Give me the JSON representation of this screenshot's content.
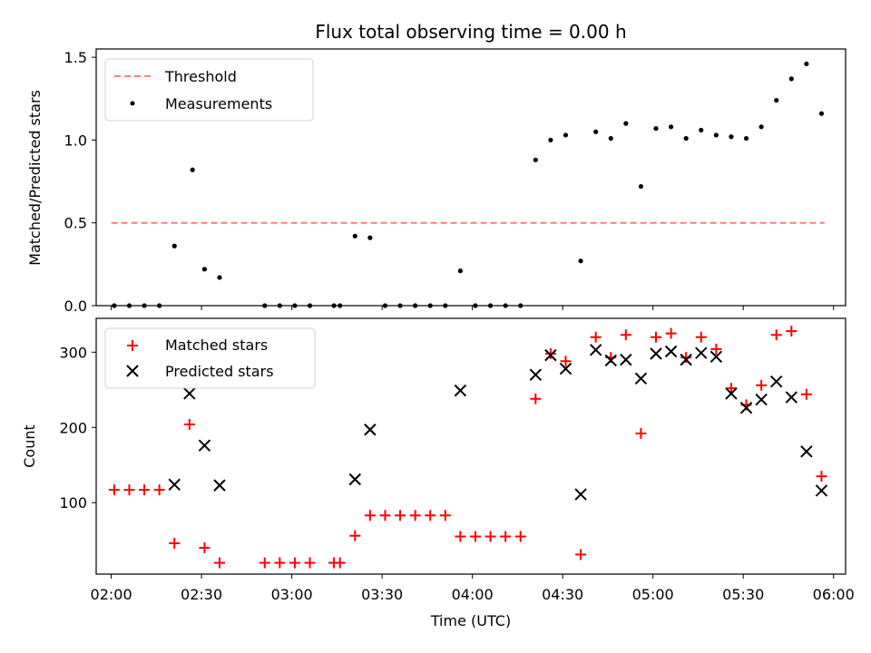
{
  "title": "Flux total observing time = 0.00 h",
  "chart_data": [
    {
      "type": "scatter",
      "ylabel": "Matched/Predicted stars",
      "ylim": [
        0,
        1.55
      ],
      "yticks": [
        0,
        0.5,
        1.0,
        1.5
      ],
      "ytick_labels": [
        "0.0",
        "0.5",
        "1.0",
        "1.5"
      ],
      "threshold": {
        "name": "Threshold",
        "value": 0.5,
        "x_start": "02:00",
        "x_end": "05:57",
        "color": "#ff7f7f"
      },
      "legend": [
        "Threshold",
        "Measurements"
      ],
      "legend_position": "top-left",
      "series": [
        {
          "name": "Measurements",
          "color": "#000000",
          "points": [
            [
              "02:01",
              0
            ],
            [
              "02:06",
              0
            ],
            [
              "02:11",
              0
            ],
            [
              "02:16",
              0
            ],
            [
              "02:21",
              0.36
            ],
            [
              "02:27",
              0.82
            ],
            [
              "02:31",
              0.22
            ],
            [
              "02:36",
              0.17
            ],
            [
              "02:51",
              0
            ],
            [
              "02:56",
              0
            ],
            [
              "03:01",
              0
            ],
            [
              "03:06",
              0
            ],
            [
              "03:14",
              0
            ],
            [
              "03:16",
              0
            ],
            [
              "03:21",
              0.42
            ],
            [
              "03:26",
              0.41
            ],
            [
              "03:31",
              0
            ],
            [
              "03:36",
              0
            ],
            [
              "03:41",
              0
            ],
            [
              "03:46",
              0
            ],
            [
              "03:51",
              0
            ],
            [
              "03:56",
              0.21
            ],
            [
              "04:01",
              0
            ],
            [
              "04:06",
              0
            ],
            [
              "04:11",
              0
            ],
            [
              "04:16",
              0
            ],
            [
              "04:21",
              0.88
            ],
            [
              "04:26",
              1.0
            ],
            [
              "04:31",
              1.03
            ],
            [
              "04:36",
              0.27
            ],
            [
              "04:41",
              1.05
            ],
            [
              "04:46",
              1.01
            ],
            [
              "04:51",
              1.1
            ],
            [
              "04:56",
              0.72
            ],
            [
              "05:01",
              1.07
            ],
            [
              "05:06",
              1.08
            ],
            [
              "05:11",
              1.01
            ],
            [
              "05:16",
              1.06
            ],
            [
              "05:21",
              1.03
            ],
            [
              "05:26",
              1.02
            ],
            [
              "05:31",
              1.01
            ],
            [
              "05:36",
              1.08
            ],
            [
              "05:41",
              1.24
            ],
            [
              "05:46",
              1.37
            ],
            [
              "05:51",
              1.46
            ],
            [
              "05:56",
              1.16
            ]
          ]
        }
      ]
    },
    {
      "type": "scatter",
      "xlabel": "Time (UTC)",
      "ylabel": "Count",
      "ylim": [
        5,
        345
      ],
      "yticks": [
        100,
        200,
        300
      ],
      "ytick_labels": [
        "100",
        "200",
        "300"
      ],
      "xlim": [
        "01:55",
        "06:04"
      ],
      "xticks": [
        "02:00",
        "02:30",
        "03:00",
        "03:30",
        "04:00",
        "04:30",
        "05:00",
        "05:30",
        "06:00"
      ],
      "xtick_labels": [
        "02:00",
        "02:30",
        "03:00",
        "03:30",
        "04:00",
        "04:30",
        "05:00",
        "05:30",
        "06:00"
      ],
      "legend": [
        "Matched stars",
        "Predicted stars"
      ],
      "legend_position": "top-left",
      "series": [
        {
          "name": "Matched stars",
          "marker": "plus",
          "color": "#ff0000",
          "points": [
            [
              "02:01",
              117
            ],
            [
              "02:06",
              117
            ],
            [
              "02:11",
              117
            ],
            [
              "02:16",
              117
            ],
            [
              "02:21",
              46
            ],
            [
              "02:26",
              204
            ],
            [
              "02:31",
              40
            ],
            [
              "02:36",
              20
            ],
            [
              "02:51",
              20
            ],
            [
              "02:56",
              20
            ],
            [
              "03:01",
              20
            ],
            [
              "03:06",
              20
            ],
            [
              "03:14",
              20
            ],
            [
              "03:16",
              20
            ],
            [
              "03:21",
              56
            ],
            [
              "03:26",
              83
            ],
            [
              "03:31",
              83
            ],
            [
              "03:36",
              83
            ],
            [
              "03:41",
              83
            ],
            [
              "03:46",
              83
            ],
            [
              "03:51",
              83
            ],
            [
              "03:56",
              55
            ],
            [
              "04:01",
              55
            ],
            [
              "04:06",
              55
            ],
            [
              "04:11",
              55
            ],
            [
              "04:16",
              55
            ],
            [
              "04:21",
              238
            ],
            [
              "04:26",
              298
            ],
            [
              "04:31",
              288
            ],
            [
              "04:36",
              31
            ],
            [
              "04:41",
              320
            ],
            [
              "04:46",
              293
            ],
            [
              "04:51",
              323
            ],
            [
              "04:56",
              192
            ],
            [
              "05:01",
              320
            ],
            [
              "05:06",
              325
            ],
            [
              "05:11",
              293
            ],
            [
              "05:16",
              320
            ],
            [
              "05:21",
              304
            ],
            [
              "05:26",
              252
            ],
            [
              "05:31",
              230
            ],
            [
              "05:36",
              256
            ],
            [
              "05:41",
              323
            ],
            [
              "05:46",
              328
            ],
            [
              "05:51",
              244
            ],
            [
              "05:56",
              135
            ]
          ]
        },
        {
          "name": "Predicted stars",
          "marker": "x",
          "color": "#000000",
          "points": [
            [
              "02:21",
              124
            ],
            [
              "02:26",
              245
            ],
            [
              "02:31",
              176
            ],
            [
              "02:36",
              123
            ],
            [
              "03:21",
              131
            ],
            [
              "03:26",
              197
            ],
            [
              "03:56",
              249
            ],
            [
              "04:21",
              270
            ],
            [
              "04:26",
              296
            ],
            [
              "04:31",
              278
            ],
            [
              "04:36",
              111
            ],
            [
              "04:41",
              303
            ],
            [
              "04:46",
              289
            ],
            [
              "04:51",
              290
            ],
            [
              "04:56",
              265
            ],
            [
              "05:01",
              298
            ],
            [
              "05:06",
              301
            ],
            [
              "05:11",
              290
            ],
            [
              "05:16",
              299
            ],
            [
              "05:21",
              294
            ],
            [
              "05:26",
              245
            ],
            [
              "05:31",
              226
            ],
            [
              "05:36",
              237
            ],
            [
              "05:41",
              261
            ],
            [
              "05:46",
              240
            ],
            [
              "05:51",
              168
            ],
            [
              "05:56",
              116
            ]
          ]
        }
      ]
    }
  ]
}
